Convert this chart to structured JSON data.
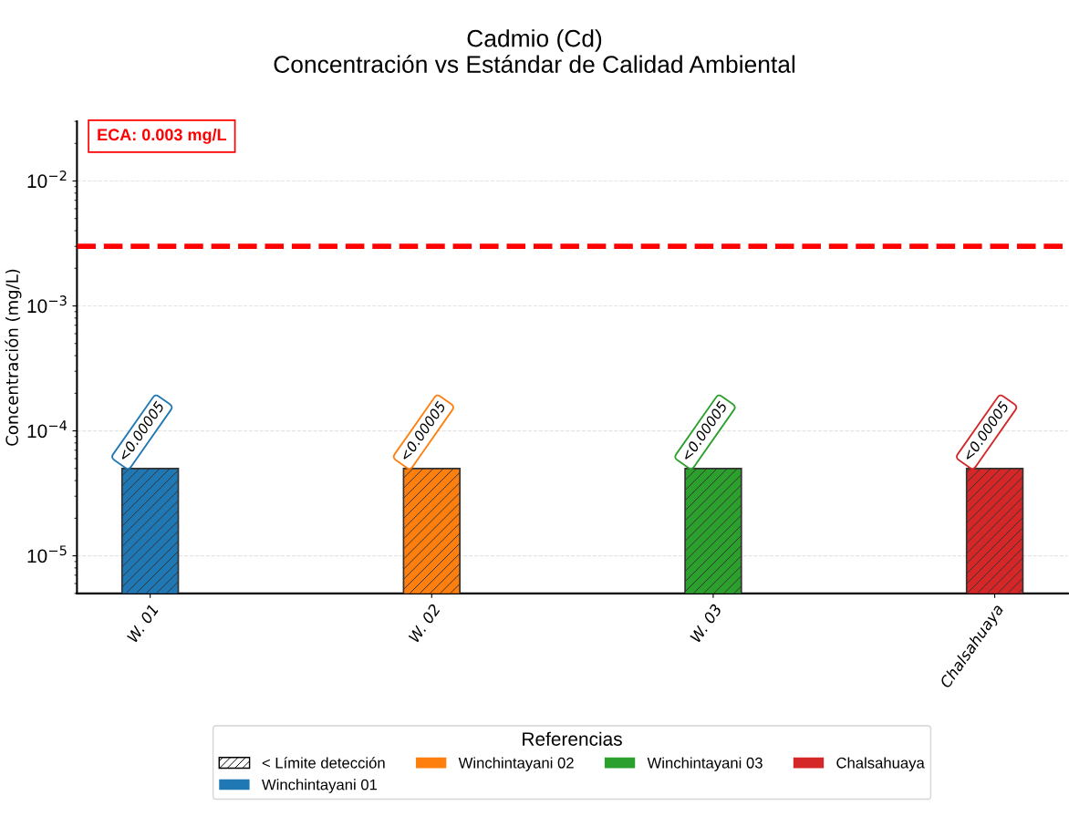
{
  "chart_data": {
    "type": "bar",
    "title": "Cadmio (Cd)\nConcentración vs Estándar de Calidad Ambiental",
    "ylabel": "Concentración (mg/L)",
    "categories": [
      "W. 01",
      "W. 02",
      "W. 03",
      "Chalsahuaya"
    ],
    "series": [
      {
        "name": "Winchintayani 01",
        "color": "#1f77b4",
        "values": [
          5e-05,
          null,
          null,
          null
        ],
        "value_labels": [
          "<0.00005",
          null,
          null,
          null
        ]
      },
      {
        "name": "Winchintayani 02",
        "color": "#ff7f0e",
        "values": [
          null,
          5e-05,
          null,
          null
        ],
        "value_labels": [
          null,
          "<0.00005",
          null,
          null
        ]
      },
      {
        "name": "Winchintayani 03",
        "color": "#2ca02c",
        "values": [
          null,
          null,
          5e-05,
          null
        ],
        "value_labels": [
          null,
          null,
          "<0.00005",
          null
        ]
      },
      {
        "name": "Chalsahuaya",
        "color": "#d62728",
        "values": [
          null,
          null,
          null,
          5e-05
        ],
        "value_labels": [
          null,
          null,
          null,
          "<0.00005"
        ]
      }
    ],
    "log": "y",
    "ylim": [
      5e-06,
      0.03
    ],
    "yticks": [
      {
        "value": 1e-05,
        "label": "10$^{−5}$"
      },
      {
        "value": 0.0001,
        "label": "10$^{−4}$"
      },
      {
        "value": 0.001,
        "label": "10$^{−3}$"
      },
      {
        "value": 0.01,
        "label": "10$^{−2}$"
      }
    ],
    "ref_lines": [
      {
        "axis": "y",
        "value": 0.003,
        "label": "ECA: 0.003 mg/L",
        "color": "#ff0000",
        "line_style": "dashed"
      }
    ],
    "legend_title": "Referencias",
    "annotations": [
      "< Límite detección"
    ],
    "legend": "bottom",
    "grid": "y"
  }
}
